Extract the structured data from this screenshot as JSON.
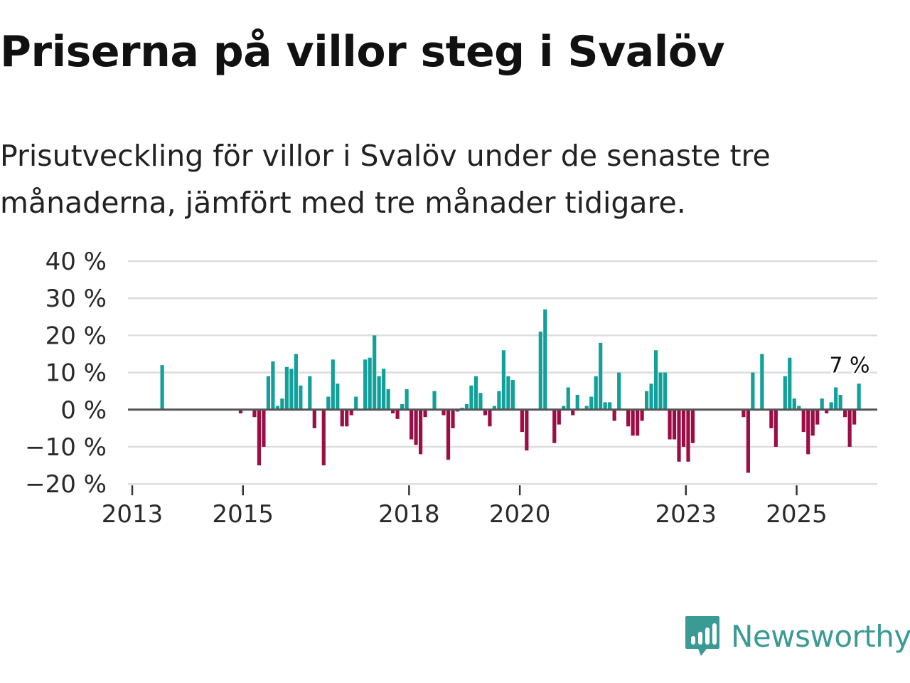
{
  "title": "Priserna på villor steg i Svalöv",
  "subtitle": "Prisutveckling för villor i Svalöv under de senaste tre månaderna, jämfört med tre månader tidigare.",
  "brand": {
    "name": "Newsworthy",
    "color": "#3a9a94",
    "icon": "newsworthy-logo-icon"
  },
  "colors": {
    "positive": "#12a09a",
    "negative": "#9c0d46",
    "grid": "#dddddd",
    "zero_line": "#555555"
  },
  "chart_data": {
    "type": "bar",
    "title": "Priserna på villor steg i Svalöv",
    "ylabel": "",
    "xlabel": "",
    "ylim": [
      -20,
      40
    ],
    "yticks": [
      40,
      30,
      20,
      10,
      0,
      -10,
      -20
    ],
    "ytick_labels": [
      "40 %",
      "30 %",
      "20 %",
      "10 %",
      "0 %",
      "−10 %",
      "−20 %"
    ],
    "x_start": "2013-01",
    "xticks": [
      2013,
      2015,
      2018,
      2020,
      2023,
      2025
    ],
    "xtick_labels": [
      "2013",
      "2015",
      "2018",
      "2020",
      "2023",
      "2025"
    ],
    "annotation": {
      "text": "7 %",
      "month": "2025-12",
      "value": 7
    },
    "series": [
      {
        "name": "Prisutveckling",
        "values": [
          0,
          0,
          0,
          0,
          0,
          0,
          12,
          0,
          0,
          0,
          0,
          0,
          0,
          0,
          0,
          0,
          0,
          0,
          0,
          0,
          0,
          0,
          0,
          -1,
          0,
          0,
          -2,
          -15,
          -10,
          9,
          13,
          1,
          3,
          11.5,
          11,
          15,
          6.5,
          0,
          9,
          -5,
          0,
          -15,
          3.5,
          13.5,
          7,
          -4.5,
          -4.5,
          -1.5,
          3.5,
          0,
          13.5,
          14,
          20,
          9,
          11,
          5.5,
          -1,
          -2.5,
          1.5,
          5.5,
          -8,
          -9.5,
          -12,
          -2,
          0,
          5,
          0,
          -1.5,
          -13.5,
          -5,
          -0.5,
          0.5,
          1.5,
          6.5,
          9,
          4.5,
          -1.5,
          -4.5,
          1,
          5,
          16,
          9,
          8,
          0,
          -6,
          -11,
          0,
          0,
          21,
          27,
          0,
          -9,
          -4,
          1,
          6,
          -1.5,
          4,
          0,
          1,
          3.5,
          9,
          18,
          2,
          2,
          -3,
          10,
          0,
          -4.5,
          -7,
          -7,
          -3,
          5,
          7,
          16,
          10,
          10,
          -8,
          -8,
          -14,
          -10,
          -14,
          -9,
          0,
          0,
          0,
          0,
          0,
          0,
          0,
          0,
          0,
          0,
          -2,
          -17,
          10,
          0,
          15,
          0,
          -5,
          -10,
          0,
          9,
          14,
          3,
          1,
          -6,
          -12,
          -7,
          -4,
          3,
          -1,
          2,
          6,
          4,
          -2,
          -10,
          -4,
          7
        ]
      }
    ]
  }
}
